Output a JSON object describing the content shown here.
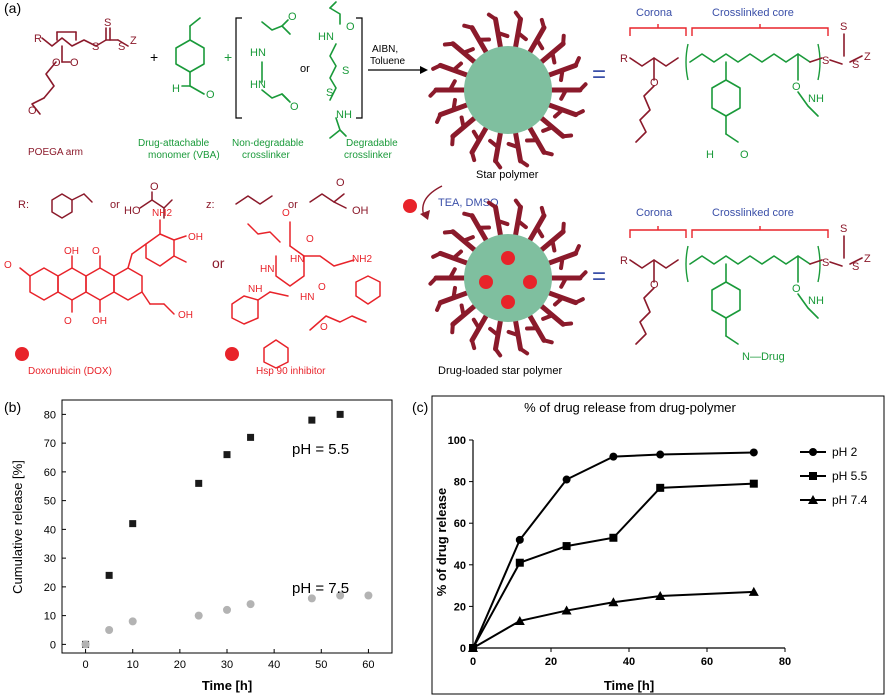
{
  "panels": {
    "a": {
      "label": "(a)",
      "reactants": {
        "poega_label": "POEGA arm",
        "vba_label_1": "Drug-attachable",
        "vba_label_2": "monomer (VBA)",
        "nondeg_label_1": "Non-degradable",
        "nondeg_label_2": "crosslinker",
        "deg_label_1": "Degradable",
        "deg_label_2": "crosslinker",
        "or_text": "or",
        "plus": "+",
        "group_r": "R",
        "group_z": "Z",
        "atom_s": "S",
        "atom_o": "O",
        "atom_h": "H",
        "atom_hn": "HN",
        "atom_nh": "NH"
      },
      "conditions": {
        "line1": "AIBN,",
        "line2": "Toluene"
      },
      "groups_row": {
        "r_label": "R:",
        "or_text": "or",
        "z_label": "z:",
        "ho": "HO",
        "oh": "OH",
        "o": "O"
      },
      "drugs": {
        "dox_label": "Doxorubicin (DOX)",
        "hsp_label": "Hsp 90 inhibitor",
        "or_text": "or",
        "nh2": "NH2",
        "oh": "OH",
        "o": "O",
        "hn": "HN",
        "nh": "NH"
      },
      "star": {
        "label": "Star polymer",
        "corona": "Corona",
        "core": "Crosslinked core"
      },
      "drug_loaded": {
        "label": "Drug-loaded star polymer",
        "conditions": "TEA, DMSO",
        "corona": "Corona",
        "core": "Crosslinked core",
        "imine": "N—Drug"
      },
      "colors": {
        "polymer": "#8b1a2b",
        "green": "#1a9a3a",
        "drug": "#e8232a",
        "core": "#7fbf9f",
        "blue": "#3a4fa8"
      }
    },
    "b": {
      "label": "(b)",
      "annotations": {
        "ph55": "pH = 5.5",
        "ph75": "pH = 7.5"
      },
      "chart_data": {
        "type": "scatter",
        "xlabel": "Time [h]",
        "ylabel": "Cumulative release [%]",
        "xlim": [
          -5,
          65
        ],
        "ylim": [
          -3,
          85
        ],
        "xticks": [
          0,
          10,
          20,
          30,
          40,
          50,
          60
        ],
        "yticks": [
          0,
          10,
          20,
          30,
          40,
          50,
          60,
          70,
          80
        ],
        "grid": false,
        "series": [
          {
            "name": "pH = 5.5",
            "color": "#1a1a1a",
            "x": [
              0,
              5,
              10,
              24,
              30,
              35,
              48,
              54
            ],
            "y": [
              0,
              24,
              42,
              56,
              66,
              72,
              78,
              80
            ]
          },
          {
            "name": "pH = 7.5",
            "color": "#b3b3b3",
            "x": [
              0,
              5,
              10,
              24,
              30,
              35,
              48,
              54,
              60
            ],
            "y": [
              0,
              5,
              8,
              10,
              12,
              14,
              16,
              17,
              17
            ]
          }
        ]
      }
    },
    "c": {
      "label": "(c)",
      "chart_data": {
        "type": "line",
        "title": "% of drug release from drug-polymer",
        "xlabel": "Time [h]",
        "ylabel": "% of drug release",
        "xlim": [
          0,
          80
        ],
        "ylim": [
          0,
          100
        ],
        "xticks": [
          0,
          20,
          40,
          60,
          80
        ],
        "yticks": [
          0,
          20,
          40,
          60,
          80,
          100
        ],
        "grid": false,
        "legend": "right",
        "series": [
          {
            "name": "pH 2",
            "marker": "circle",
            "x": [
              0,
              12,
              24,
              36,
              48,
              72
            ],
            "y": [
              0,
              52,
              81,
              92,
              93,
              94
            ]
          },
          {
            "name": "pH 5.5",
            "marker": "square",
            "x": [
              0,
              12,
              24,
              36,
              48,
              72
            ],
            "y": [
              0,
              41,
              49,
              53,
              77,
              79
            ]
          },
          {
            "name": "pH 7.4",
            "marker": "triangle",
            "x": [
              0,
              12,
              24,
              36,
              48,
              72
            ],
            "y": [
              0,
              13,
              18,
              22,
              25,
              27
            ]
          }
        ]
      }
    }
  }
}
